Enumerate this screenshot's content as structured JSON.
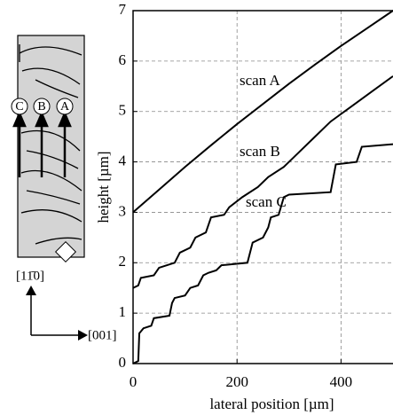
{
  "chart_data": {
    "type": "line",
    "xlabel": "lateral position [µm]",
    "ylabel": "height [µm]",
    "xlim": [
      0,
      500
    ],
    "ylim": [
      0,
      7
    ],
    "xticks": [
      0,
      200,
      400
    ],
    "yticks": [
      0,
      1,
      2,
      3,
      4,
      5,
      6,
      7
    ],
    "grid": true,
    "series": [
      {
        "name": "scan A",
        "color": "#000000",
        "x": [
          0,
          50,
          100,
          150,
          200,
          250,
          300,
          350,
          400,
          450,
          500
        ],
        "values": [
          3.0,
          3.45,
          3.9,
          4.33,
          4.75,
          5.15,
          5.55,
          5.93,
          6.3,
          6.65,
          7.0
        ]
      },
      {
        "name": "scan B",
        "color": "#000000",
        "x": [
          0,
          10,
          15,
          40,
          50,
          80,
          90,
          110,
          120,
          140,
          150,
          175,
          185,
          210,
          240,
          260,
          290,
          320,
          350,
          380,
          420,
          460,
          500
        ],
        "values": [
          1.5,
          1.55,
          1.7,
          1.75,
          1.9,
          2.0,
          2.2,
          2.3,
          2.5,
          2.6,
          2.9,
          2.95,
          3.1,
          3.3,
          3.5,
          3.7,
          3.9,
          4.2,
          4.5,
          4.8,
          5.1,
          5.4,
          5.7
        ]
      },
      {
        "name": "scan C",
        "color": "#000000",
        "x": [
          0,
          10,
          12,
          20,
          35,
          40,
          70,
          75,
          80,
          100,
          110,
          125,
          135,
          145,
          160,
          170,
          220,
          230,
          250,
          260,
          265,
          280,
          290,
          300,
          380,
          390,
          430,
          440,
          500
        ],
        "values": [
          0,
          0.05,
          0.6,
          0.7,
          0.75,
          0.9,
          0.95,
          1.2,
          1.3,
          1.35,
          1.5,
          1.55,
          1.75,
          1.8,
          1.85,
          1.95,
          2.0,
          2.4,
          2.5,
          2.7,
          2.9,
          2.95,
          3.3,
          3.35,
          3.4,
          3.95,
          4.0,
          4.3,
          4.35
        ]
      }
    ]
  },
  "diagram": {
    "labels": [
      "C",
      "B",
      "A"
    ],
    "axis_vertical": "[11̄0]",
    "axis_horizontal": "[001]"
  }
}
